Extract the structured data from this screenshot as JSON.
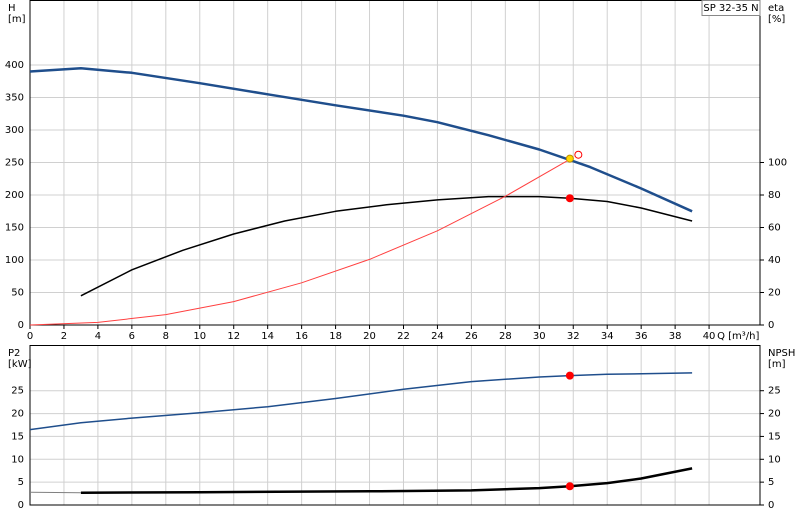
{
  "chart_data": [
    {
      "type": "line",
      "title": "SP 32-35 N",
      "y_label": [
        "H",
        "[m]"
      ],
      "y2_label": [
        "eta",
        "[%]"
      ],
      "x_label": "Q [m³/h]",
      "xlim": [
        0,
        43
      ],
      "xticks": [
        0,
        2,
        4,
        6,
        8,
        10,
        12,
        14,
        16,
        18,
        20,
        22,
        24,
        26,
        28,
        30,
        32,
        34,
        36,
        38,
        40
      ],
      "ylim": [
        0,
        500
      ],
      "yticks": [
        0,
        50,
        100,
        150,
        200,
        250,
        300,
        350,
        400
      ],
      "y2lim": [
        0,
        200
      ],
      "y2ticks": [
        0,
        20,
        40,
        60,
        80,
        100
      ],
      "grid": true,
      "series": [
        {
          "color": "#1f4e8c",
          "line_width": 2.5,
          "x": [
            0,
            3,
            6,
            10,
            14,
            18,
            22,
            24,
            27,
            30,
            32,
            33,
            36,
            39
          ],
          "values": [
            390,
            395,
            388,
            372,
            355,
            338,
            322,
            312,
            292,
            270,
            252,
            243,
            210,
            175
          ]
        },
        {
          "color": "#000000",
          "line_width": 1.5,
          "axis": "y2",
          "x": [
            3,
            6,
            9,
            12,
            15,
            18,
            21,
            24,
            27,
            30,
            31.8,
            34,
            36,
            39
          ],
          "values": [
            18,
            34,
            46,
            56,
            64,
            70,
            74,
            77,
            79,
            79,
            78,
            76,
            72,
            64
          ]
        },
        {
          "color": "#ff4040",
          "line_width": 1,
          "x": [
            0,
            4,
            8,
            12,
            16,
            20,
            24,
            28,
            32
          ],
          "values": [
            0,
            4,
            16,
            36,
            65,
            101,
            145,
            198,
            258
          ]
        },
        {
          "color": "#ff0000",
          "marker": "dot",
          "axis": "y2",
          "x": [
            31.8
          ],
          "values": [
            78
          ]
        },
        {
          "color": "#ffd800",
          "marker": "dot",
          "x": [
            31.8
          ],
          "values": [
            256
          ]
        },
        {
          "color": "#ff0000",
          "marker": "open",
          "x": [
            32.3
          ],
          "values": [
            262
          ]
        }
      ]
    },
    {
      "type": "line",
      "y_label": [
        "P2",
        "[kW]"
      ],
      "y2_label": [
        "NPSH",
        "[m]"
      ],
      "xlim": [
        0,
        43
      ],
      "ylim": [
        0,
        35
      ],
      "yticks": [
        0,
        5,
        10,
        15,
        20,
        25
      ],
      "y2lim": [
        0,
        35
      ],
      "y2ticks": [
        0,
        5,
        10,
        15,
        20,
        25
      ],
      "grid": true,
      "series": [
        {
          "color": "#1f4e8c",
          "line_width": 1.5,
          "x": [
            0,
            3,
            6,
            10,
            14,
            18,
            22,
            26,
            30,
            31.8,
            34,
            39
          ],
          "values": [
            16.5,
            18,
            19,
            20.2,
            21.5,
            23.3,
            25.3,
            27,
            28,
            28.3,
            28.6,
            28.9
          ]
        },
        {
          "color": "#000000",
          "line_width": 2.5,
          "axis": "y2",
          "x": [
            3,
            10,
            20,
            26,
            30,
            31.8,
            34,
            36,
            39
          ],
          "values": [
            2.7,
            2.8,
            3,
            3.2,
            3.7,
            4.1,
            4.8,
            5.8,
            8
          ]
        },
        {
          "color": "#808080",
          "line_width": 1,
          "axis": "y2",
          "x": [
            0,
            3
          ],
          "values": [
            2.8,
            2.7
          ]
        },
        {
          "color": "#ff0000",
          "marker": "dot",
          "x": [
            31.8
          ],
          "values": [
            28.3
          ]
        },
        {
          "color": "#ff0000",
          "marker": "dot",
          "axis": "y2",
          "x": [
            31.8
          ],
          "values": [
            4.1
          ]
        }
      ]
    }
  ]
}
